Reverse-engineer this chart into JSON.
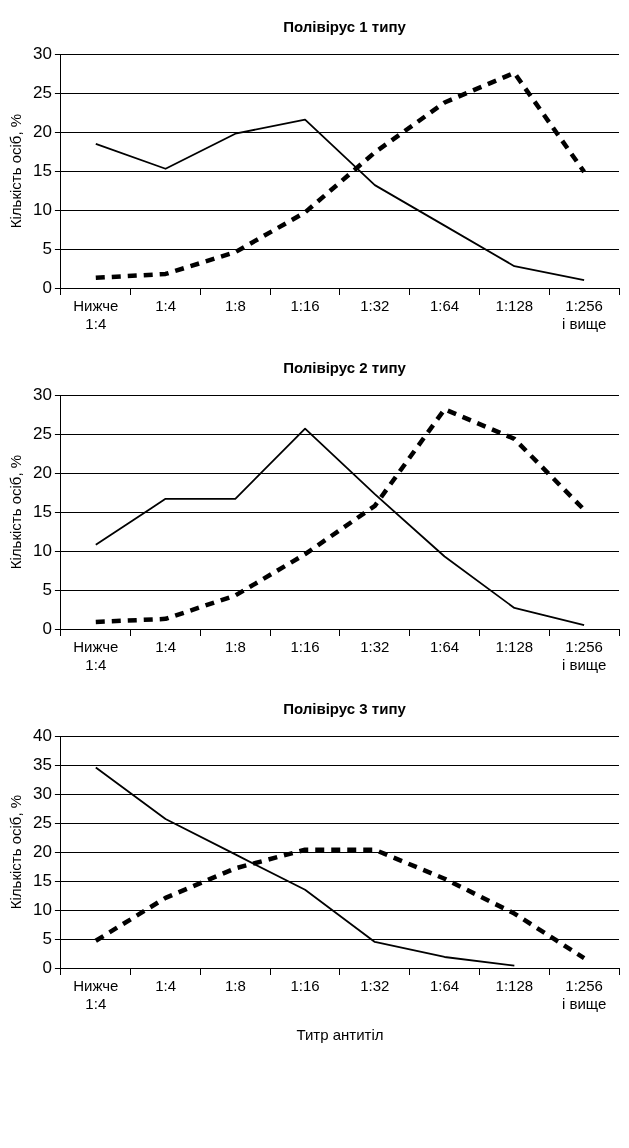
{
  "chart_data": [
    {
      "type": "line",
      "title": "Полівірус 1 типу",
      "ylabel": "Кількість осіб, %",
      "categories": [
        "Нижче 1:4",
        "1:4",
        "1:8",
        "1:16",
        "1:32",
        "1:64",
        "1:128",
        "1:256 і вище"
      ],
      "series": [
        {
          "color": "#000000",
          "line_style": "solid",
          "values": [
            18.5,
            15.3,
            19.8,
            21.6,
            13.2,
            8.0,
            2.8,
            1.0
          ]
        },
        {
          "color": "#000000",
          "line_style": "dashed",
          "values": [
            1.3,
            1.8,
            4.6,
            9.7,
            17.4,
            23.8,
            27.6,
            14.9
          ]
        }
      ],
      "ylim": [
        0,
        30
      ],
      "yticks": [
        0,
        5,
        10,
        15,
        20,
        25,
        30
      ],
      "grid": "y",
      "legend": false,
      "marker": "none"
    },
    {
      "type": "line",
      "title": "Полівірус 2 типу",
      "ylabel": "Кількість осіб, %",
      "categories": [
        "Нижче 1:4",
        "1:4",
        "1:8",
        "1:16",
        "1:32",
        "1:64",
        "1:128",
        "1:256 і вище"
      ],
      "series": [
        {
          "color": "#000000",
          "line_style": "solid",
          "values": [
            10.8,
            16.7,
            16.7,
            25.7,
            17.3,
            9.3,
            2.7,
            0.5
          ]
        },
        {
          "color": "#000000",
          "line_style": "dashed",
          "values": [
            0.9,
            1.3,
            4.3,
            9.6,
            15.8,
            28.2,
            24.4,
            15.3
          ]
        }
      ],
      "ylim": [
        0,
        30
      ],
      "yticks": [
        0,
        5,
        10,
        15,
        20,
        25,
        30
      ],
      "grid": "y",
      "legend": false,
      "marker": "none"
    },
    {
      "type": "line",
      "title": "Полівірус 3 типу",
      "ylabel": "Кількість осіб, %",
      "xlabel": "Титр антитіл",
      "categories": [
        "Нижче 1:4",
        "1:4",
        "1:8",
        "1:16",
        "1:32",
        "1:64",
        "1:128",
        "1:256 і вище"
      ],
      "series": [
        {
          "color": "#000000",
          "line_style": "solid",
          "values": [
            34.6,
            25.7,
            19.6,
            13.5,
            4.5,
            1.9,
            0.4,
            null
          ]
        },
        {
          "color": "#000000",
          "line_style": "dashed",
          "values": [
            4.7,
            12.1,
            17.2,
            20.4,
            20.4,
            15.4,
            9.4,
            1.7
          ]
        }
      ],
      "ylim": [
        0,
        40
      ],
      "yticks": [
        0,
        5,
        10,
        15,
        20,
        25,
        30,
        35,
        40
      ],
      "grid": "y",
      "legend": false,
      "marker": "none"
    }
  ]
}
